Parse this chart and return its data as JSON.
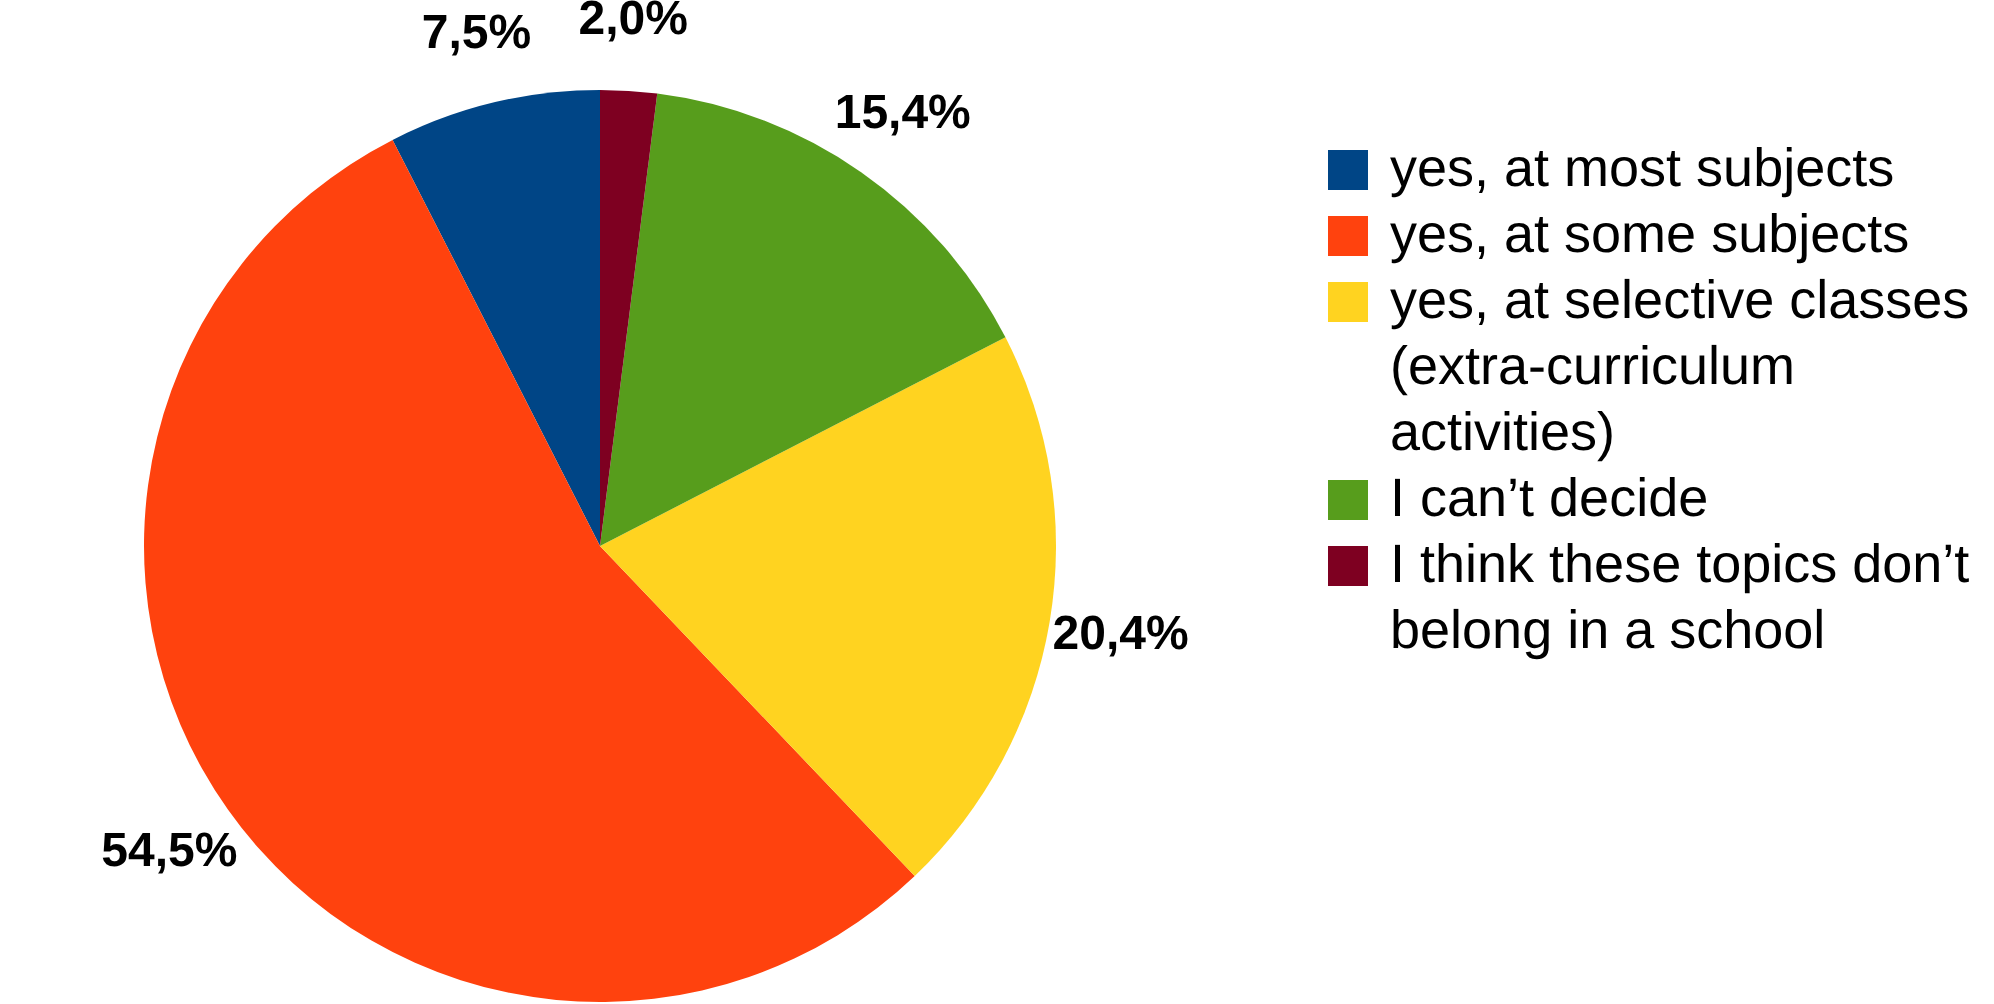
{
  "chart_data": {
    "type": "pie",
    "categories": [
      "yes, at most subjects",
      "yes, at some subjects",
      "yes, at selective classes (extra-curriculum activities)",
      "I can’t decide",
      "I think these topics don’t belong in a school"
    ],
    "values": [
      7.5,
      54.5,
      20.4,
      15.4,
      2.0
    ],
    "colors": [
      "#004586",
      "#ff420e",
      "#ffd320",
      "#579d1c",
      "#7e0021"
    ],
    "value_labels": [
      "7,5%",
      "54,5%",
      "20,4%",
      "15,4%",
      "2,0%"
    ],
    "legend": "right"
  }
}
